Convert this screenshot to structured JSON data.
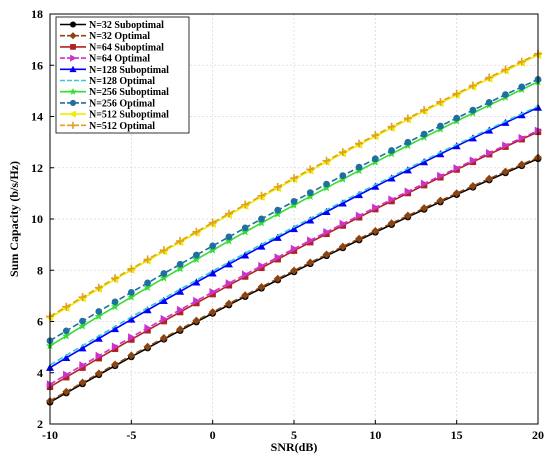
{
  "chart_data": {
    "type": "line",
    "xlabel": "SNR(dB)",
    "ylabel": "Sum Capacity (b/s/Hz)",
    "xlim": [
      -10,
      20
    ],
    "ylim": [
      2,
      18
    ],
    "xticks": [
      -10,
      -5,
      0,
      5,
      10,
      15,
      20
    ],
    "yticks": [
      2,
      4,
      6,
      8,
      10,
      12,
      14,
      16,
      18
    ],
    "grid": true,
    "legend_position": "top-left",
    "x": [
      -10,
      -9,
      -8,
      -7,
      -6,
      -5,
      -4,
      -3,
      -2,
      -1,
      0,
      1,
      2,
      3,
      4,
      5,
      6,
      7,
      8,
      9,
      10,
      11,
      12,
      13,
      14,
      15,
      16,
      17,
      18,
      19,
      20
    ],
    "series": [
      {
        "name": "N=32 Suboptimal",
        "color": "#000000",
        "marker": "circle",
        "dash": "solid",
        "y0": 2.85,
        "y_end": 12.35,
        "curv": 0.015
      },
      {
        "name": "N=32 Optimal",
        "color": "#8B4513",
        "marker": "diamond",
        "dash": "dashed",
        "y0": 2.9,
        "y_end": 12.4,
        "curv": 0.015
      },
      {
        "name": "N=64 Suboptimal",
        "color": "#B22222",
        "marker": "square",
        "dash": "solid",
        "y0": 3.45,
        "y_end": 13.4,
        "curv": 0.015
      },
      {
        "name": "N=64 Optimal",
        "color": "#CC33CC",
        "marker": "triangle-right",
        "dash": "dashed",
        "y0": 3.55,
        "y_end": 13.45,
        "curv": 0.015
      },
      {
        "name": "N=128 Suboptimal",
        "color": "#0000FF",
        "marker": "triangle-up",
        "dash": "solid",
        "y0": 4.2,
        "y_end": 14.35,
        "curv": 0.015
      },
      {
        "name": "N=128 Optimal",
        "color": "#33CCCC",
        "marker": "none",
        "dash": "dashed",
        "y0": 4.3,
        "y_end": 14.4,
        "curv": 0.015
      },
      {
        "name": "N=256 Suboptimal",
        "color": "#33DD33",
        "marker": "star",
        "dash": "solid",
        "y0": 5.05,
        "y_end": 15.35,
        "curv": 0.015
      },
      {
        "name": "N=256 Optimal",
        "color": "#1F6F9F",
        "marker": "circle",
        "dash": "dashed",
        "y0": 5.25,
        "y_end": 15.45,
        "curv": 0.015
      },
      {
        "name": "N=512 Suboptimal",
        "color": "#EEEE00",
        "marker": "triangle-left",
        "dash": "solid",
        "y0": 6.15,
        "y_end": 16.4,
        "curv": 0.012
      },
      {
        "name": "N=512 Optimal",
        "color": "#E0A020",
        "marker": "plus",
        "dash": "dashed",
        "y0": 6.2,
        "y_end": 16.45,
        "curv": 0.012
      }
    ]
  }
}
